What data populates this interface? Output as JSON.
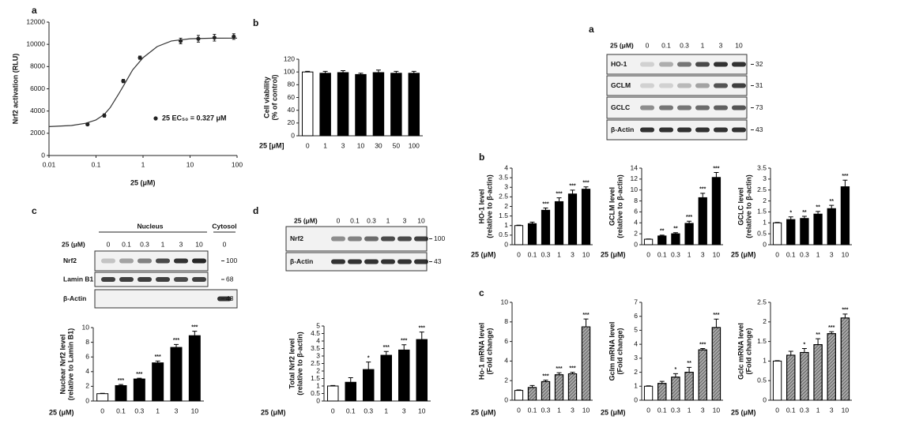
{
  "chart_data": [
    {
      "panel": "a",
      "type": "scatter",
      "ylabel": "Nrf2 activation (RLU)",
      "xlabel": "25 (μM)",
      "xlog": true,
      "xlim": [
        0.01,
        100
      ],
      "xticks": [
        0.01,
        0.1,
        1,
        10,
        100
      ],
      "ylim": [
        0,
        12000
      ],
      "yticks": [
        0,
        2000,
        4000,
        6000,
        8000,
        10000,
        12000
      ],
      "legend": "lower-right",
      "series": [
        {
          "name": "25  EC₅₀ = 0.327 μM",
          "color": "#222222",
          "x": [
            0.066,
            0.15,
            0.38,
            0.86,
            6.3,
            15,
            33,
            85
          ],
          "values": [
            2800,
            3600,
            6700,
            8800,
            10300,
            10500,
            10600,
            10700
          ],
          "errors": [
            100,
            150,
            150,
            150,
            250,
            300,
            300,
            250
          ]
        }
      ],
      "curve": {
        "color": "#333333",
        "x": [
          0.01,
          0.03,
          0.06,
          0.1,
          0.15,
          0.2,
          0.3,
          0.4,
          0.6,
          1,
          2,
          4,
          10,
          30,
          100
        ],
        "values": [
          2600,
          2700,
          2900,
          3200,
          3700,
          4300,
          5500,
          6400,
          7700,
          8800,
          9800,
          10300,
          10500,
          10550,
          10560
        ]
      }
    },
    {
      "panel": "b",
      "type": "bar",
      "ylabel": [
        "Cell viability",
        "(% of control)"
      ],
      "xlabel": "25 [μM]",
      "categories": [
        "0",
        "1",
        "3",
        "10",
        "30",
        "50",
        "100"
      ],
      "values": [
        100,
        98,
        99,
        96,
        99,
        98,
        98
      ],
      "errors": [
        1,
        3,
        3,
        2,
        4,
        3,
        3
      ],
      "colors": [
        "#ffffff",
        "#000000",
        "#000000",
        "#000000",
        "#000000",
        "#000000",
        "#000000"
      ],
      "ylim": [
        0,
        120
      ],
      "yticks": [
        0,
        20,
        40,
        60,
        80,
        100,
        120
      ]
    },
    {
      "type": "bar",
      "ylabel": [
        "Nuclear Nrf2 level",
        "(relative to Lamin B1)"
      ],
      "xlabel": "25 (μM)",
      "categories": [
        "0",
        "0.1",
        "0.3",
        "1",
        "3",
        "10"
      ],
      "values": [
        1,
        2.1,
        3.0,
        5.2,
        7.3,
        8.9
      ],
      "errors": [
        0.05,
        0.15,
        0.1,
        0.25,
        0.4,
        0.6
      ],
      "stars": [
        null,
        "***",
        "***",
        "***",
        "***",
        "***"
      ],
      "colors": [
        "#ffffff",
        "#000000",
        "#000000",
        "#000000",
        "#000000",
        "#000000"
      ],
      "ylim": [
        0,
        10
      ],
      "yticks": [
        0,
        2,
        4,
        6,
        8,
        10
      ]
    },
    {
      "type": "bar",
      "ylabel": [
        "Total Nrf2 level",
        "(relative to β-actin)"
      ],
      "xlabel": "25 (μM)",
      "categories": [
        "0",
        "0.1",
        "0.3",
        "1",
        "3",
        "10"
      ],
      "values": [
        1,
        1.25,
        2.1,
        3.05,
        3.4,
        4.1
      ],
      "errors": [
        0.03,
        0.3,
        0.5,
        0.25,
        0.35,
        0.5
      ],
      "stars": [
        null,
        null,
        "*",
        "***",
        "***",
        "***"
      ],
      "colors": [
        "#ffffff",
        "#000000",
        "#000000",
        "#000000",
        "#000000",
        "#000000"
      ],
      "ylim": [
        0,
        5
      ],
      "yticks": [
        0,
        0.5,
        1,
        1.5,
        2,
        2.5,
        3,
        3.5,
        4,
        4.5,
        5
      ]
    },
    {
      "panel": "b",
      "type": "bar",
      "ylabel": [
        "HO-1 level",
        "(relative to β-actin)"
      ],
      "xlabel": "25 (μM)",
      "categories": [
        "0",
        "0.1",
        "0.3",
        "1",
        "3",
        "10"
      ],
      "values": [
        1,
        1.1,
        1.8,
        2.25,
        2.65,
        2.9
      ],
      "errors": [
        0.02,
        0.08,
        0.12,
        0.2,
        0.2,
        0.12
      ],
      "stars": [
        null,
        null,
        "***",
        "***",
        "***",
        "***"
      ],
      "colors": [
        "#ffffff",
        "#000000",
        "#000000",
        "#000000",
        "#000000",
        "#000000"
      ],
      "ylim": [
        0,
        4
      ],
      "yticks": [
        0,
        0.5,
        1,
        1.5,
        2,
        2.5,
        3,
        3.5,
        4
      ]
    },
    {
      "type": "bar",
      "ylabel": [
        "GCLM level",
        "(relative to β-actin)"
      ],
      "xlabel": "25 (μM)",
      "categories": [
        "0",
        "0.1",
        "0.3",
        "1",
        "3",
        "10"
      ],
      "values": [
        1,
        1.6,
        2.0,
        3.9,
        8.6,
        12.3
      ],
      "errors": [
        0.05,
        0.15,
        0.2,
        0.4,
        0.8,
        0.9
      ],
      "stars": [
        null,
        "**",
        "**",
        "***",
        "***",
        "***"
      ],
      "colors": [
        "#ffffff",
        "#000000",
        "#000000",
        "#000000",
        "#000000",
        "#000000"
      ],
      "ylim": [
        0,
        14
      ],
      "yticks": [
        0,
        2,
        4,
        6,
        8,
        10,
        12,
        14
      ]
    },
    {
      "type": "bar",
      "ylabel": [
        "GCLC level",
        "(relative to β-actin)"
      ],
      "xlabel": "25 (μM)",
      "categories": [
        "0",
        "0.1",
        "0.3",
        "1",
        "3",
        "10"
      ],
      "values": [
        1,
        1.15,
        1.2,
        1.4,
        1.65,
        2.65
      ],
      "errors": [
        0.02,
        0.12,
        0.1,
        0.12,
        0.15,
        0.3
      ],
      "stars": [
        null,
        "*",
        "**",
        "**",
        "**",
        "***"
      ],
      "colors": [
        "#ffffff",
        "#000000",
        "#000000",
        "#000000",
        "#000000",
        "#000000"
      ],
      "ylim": [
        0,
        3.5
      ],
      "yticks": [
        0,
        0.5,
        1,
        1.5,
        2,
        2.5,
        3,
        3.5
      ]
    },
    {
      "panel": "c",
      "type": "bar",
      "ylabel": [
        "Ho-1 mRNA level",
        "(Fold change)"
      ],
      "xlabel": "25 (μM)",
      "categories": [
        "0",
        "0.1",
        "0.3",
        "1",
        "3",
        "10"
      ],
      "values": [
        1,
        1.3,
        1.9,
        2.6,
        2.7,
        7.5
      ],
      "errors": [
        0.05,
        0.2,
        0.15,
        0.2,
        0.15,
        0.8
      ],
      "stars": [
        null,
        null,
        "***",
        "***",
        "***",
        "***"
      ],
      "colors": [
        "#ffffff",
        "#aaaaaa",
        "#aaaaaa",
        "#aaaaaa",
        "#aaaaaa",
        "#aaaaaa"
      ],
      "hatch": [
        false,
        true,
        true,
        true,
        true,
        true
      ],
      "ylim": [
        0,
        10
      ],
      "yticks": [
        0,
        2,
        4,
        6,
        8,
        10
      ]
    },
    {
      "type": "bar",
      "ylabel": [
        "Gclm mRNA level",
        "(Fold change)"
      ],
      "xlabel": "25 (μM)",
      "categories": [
        "0",
        "0.1",
        "0.3",
        "1",
        "3",
        "10"
      ],
      "values": [
        1,
        1.2,
        1.65,
        2.0,
        3.6,
        5.2
      ],
      "errors": [
        0.03,
        0.15,
        0.25,
        0.35,
        0.1,
        0.6
      ],
      "stars": [
        null,
        null,
        "*",
        "**",
        "***",
        "***"
      ],
      "colors": [
        "#ffffff",
        "#aaaaaa",
        "#aaaaaa",
        "#aaaaaa",
        "#aaaaaa",
        "#aaaaaa"
      ],
      "hatch": [
        false,
        true,
        true,
        true,
        true,
        true
      ],
      "ylim": [
        0,
        7
      ],
      "yticks": [
        0,
        1,
        2,
        3,
        4,
        5,
        6,
        7
      ]
    },
    {
      "type": "bar",
      "ylabel": [
        "Gclc mRNA level",
        "(Fold change)"
      ],
      "xlabel": "25 (μM)",
      "categories": [
        "0",
        "0.1",
        "0.3",
        "1",
        "3",
        "10"
      ],
      "values": [
        1,
        1.15,
        1.22,
        1.42,
        1.7,
        2.1
      ],
      "errors": [
        0.01,
        0.1,
        0.1,
        0.15,
        0.05,
        0.1
      ],
      "stars": [
        null,
        null,
        "*",
        "**",
        "***",
        "***"
      ],
      "colors": [
        "#ffffff",
        "#aaaaaa",
        "#aaaaaa",
        "#aaaaaa",
        "#aaaaaa",
        "#aaaaaa"
      ],
      "hatch": [
        false,
        true,
        true,
        true,
        true,
        true
      ],
      "ylim": [
        0,
        2.5
      ],
      "yticks": [
        0,
        0.5,
        1,
        1.5,
        2,
        2.5
      ]
    }
  ],
  "blots": [
    {
      "panel": "c",
      "groups": [
        "Nucleus",
        "Cytosol"
      ],
      "dose_label": "25 (μM)",
      "lanes": [
        "0",
        "0.1",
        "0.3",
        "1",
        "3",
        "10",
        "0"
      ],
      "rows": [
        {
          "label": "Nrf2",
          "mw": 100
        },
        {
          "label": "Lamin B1",
          "mw": 68
        },
        {
          "label": "β-Actin",
          "mw": 43
        }
      ]
    },
    {
      "panel": "d",
      "dose_label": "25 (μM)",
      "lanes": [
        "0",
        "0.1",
        "0.3",
        "1",
        "3",
        "10"
      ],
      "rows": [
        {
          "label": "Nrf2",
          "mw": 100
        },
        {
          "label": "β-Actin",
          "mw": 43
        }
      ]
    },
    {
      "panel": "a",
      "dose_label": "25 (μM)",
      "lanes": [
        "0",
        "0.1",
        "0.3",
        "1",
        "3",
        "10"
      ],
      "rows": [
        {
          "label": "HO-1",
          "mw": 32
        },
        {
          "label": "GCLM",
          "mw": 31
        },
        {
          "label": "GCLC",
          "mw": 73
        },
        {
          "label": "β-Actin",
          "mw": 43
        }
      ]
    }
  ]
}
